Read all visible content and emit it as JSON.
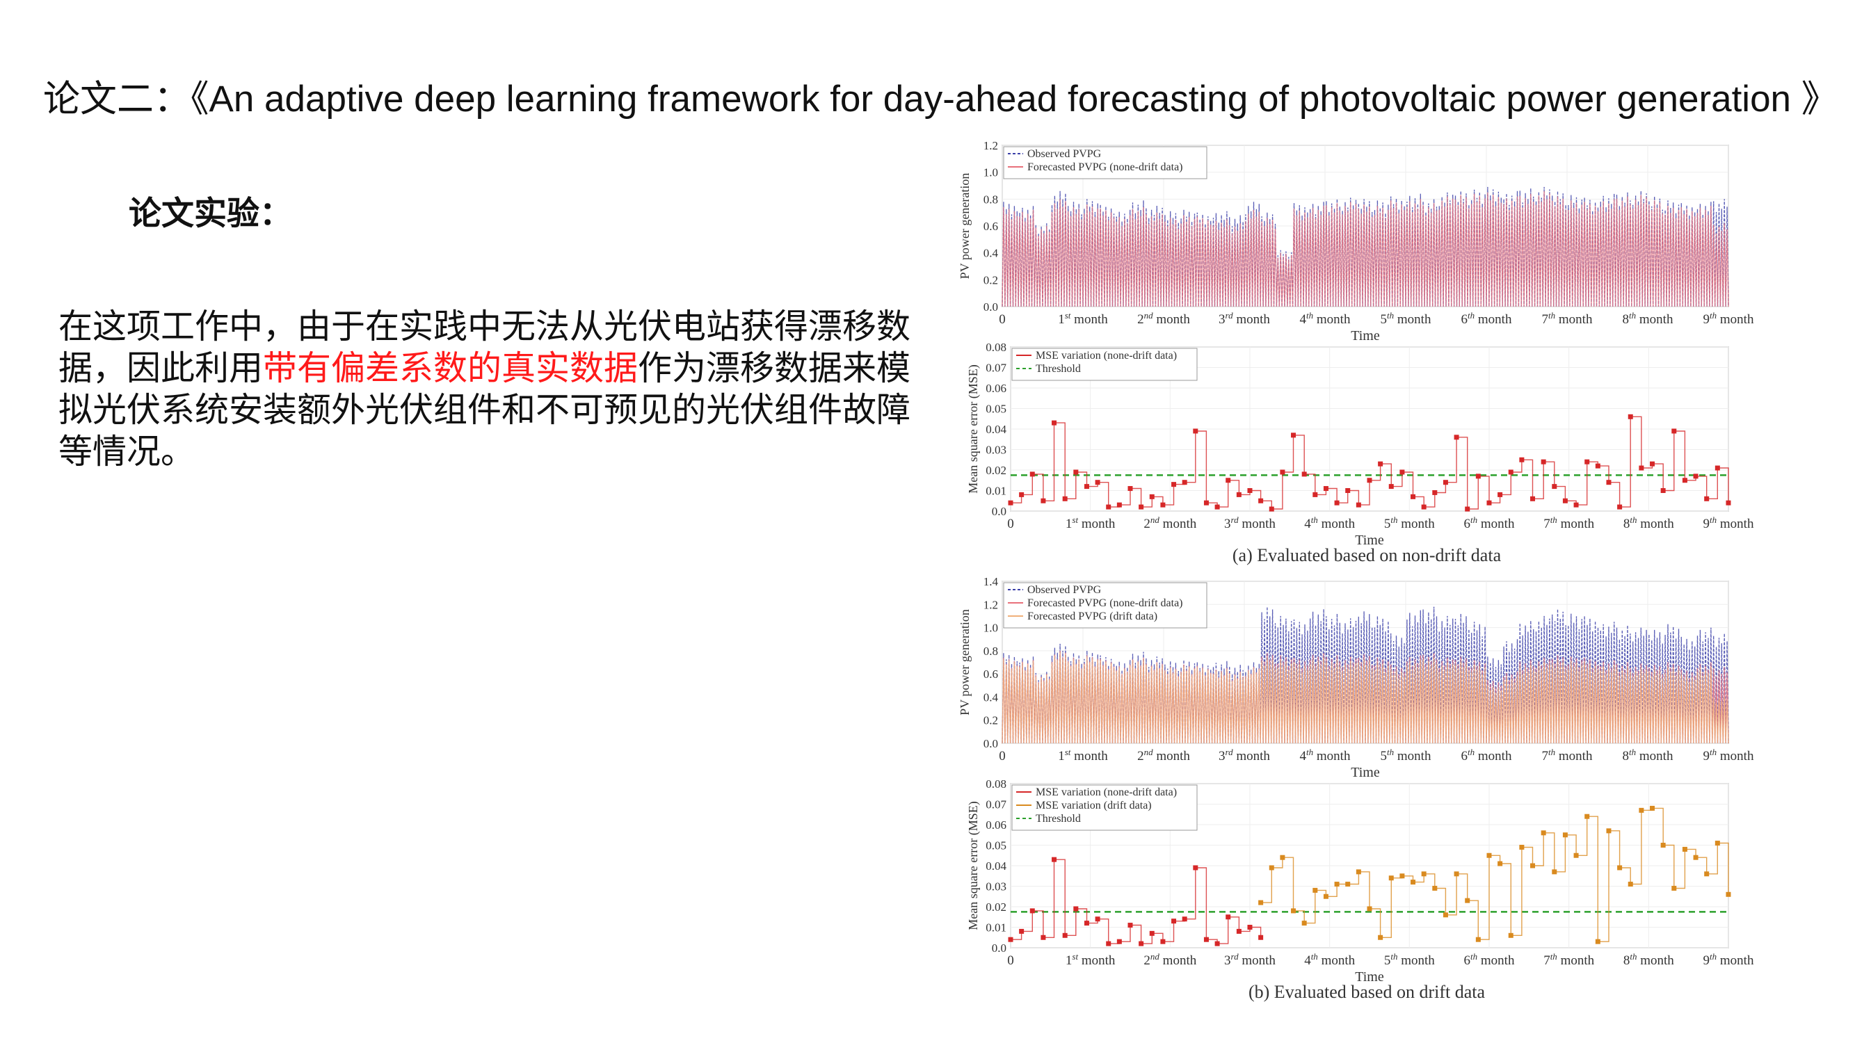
{
  "slide": {
    "title": "论文二：《An adaptive deep learning framework for day-ahead forecasting of photovoltaic power generation 》",
    "subheading": "论文实验：",
    "body_before": "在这项工作中，由于在实践中无法从光伏电站获得漂移数据，因此利用",
    "body_highlight": "带有偏差系数的真实数据",
    "body_after": "作为漂移数据来模拟光伏系统安装额外光伏组件和不可预见的光伏组件故障等情况。",
    "highlight_color": "#ff1a1a"
  },
  "chart_data": [
    {
      "id": "pv_nondrift",
      "type": "line",
      "xlabel": "Time",
      "ylabel": "PV power generation",
      "ylim": [
        0,
        1.2
      ],
      "yticks": [
        "0.0",
        "0.2",
        "0.4",
        "0.6",
        "0.8",
        "1.0",
        "1.2"
      ],
      "xlim": [
        0,
        9
      ],
      "xticks": [
        "0",
        "1st month",
        "2nd month",
        "3rd month",
        "4th month",
        "5th month",
        "6th month",
        "7th month",
        "8th month",
        "9th month"
      ],
      "legend": [
        "Observed PVPG",
        "Forecasted PVPG (none-drift data)"
      ],
      "legend_position": "top-left",
      "series": [
        {
          "name": "Observed PVPG",
          "color": "#3b3fa8",
          "dashed": true,
          "peaks": [
            0.78,
            0.75,
            0.62,
            0.86,
            0.78,
            0.8,
            0.76,
            0.72,
            0.79,
            0.75,
            0.71,
            0.72,
            0.7,
            0.71,
            0.68,
            0.78,
            0.7,
            0.42,
            0.77,
            0.78,
            0.8,
            0.81,
            0.8,
            0.79,
            0.82,
            0.84,
            0.8,
            0.85,
            0.86,
            0.87,
            0.89,
            0.86,
            0.88,
            0.89,
            0.86,
            0.83,
            0.81,
            0.84,
            0.85,
            0.86,
            0.82,
            0.79,
            0.77,
            0.78,
            0.8
          ]
        },
        {
          "name": "Forecasted PVPG (none-drift data)",
          "color": "#e8707a",
          "dashed": false,
          "peaks": [
            0.74,
            0.72,
            0.6,
            0.8,
            0.74,
            0.76,
            0.73,
            0.68,
            0.74,
            0.7,
            0.66,
            0.68,
            0.67,
            0.65,
            0.62,
            0.72,
            0.66,
            0.4,
            0.73,
            0.75,
            0.77,
            0.78,
            0.76,
            0.75,
            0.79,
            0.8,
            0.77,
            0.82,
            0.83,
            0.84,
            0.85,
            0.82,
            0.84,
            0.86,
            0.82,
            0.79,
            0.78,
            0.8,
            0.82,
            0.83,
            0.79,
            0.75,
            0.74,
            0.75,
            0.62
          ]
        }
      ]
    },
    {
      "id": "mse_nondrift",
      "type": "line",
      "xlabel": "Time",
      "ylabel": "Mean square error (MSE)",
      "ylim": [
        0,
        0.08
      ],
      "yticks": [
        "0.0",
        "0.01",
        "0.02",
        "0.03",
        "0.04",
        "0.05",
        "0.06",
        "0.07",
        "0.08"
      ],
      "xlim": [
        0,
        9
      ],
      "xticks": [
        "0",
        "1st month",
        "2nd month",
        "3rd month",
        "4th month",
        "5th month",
        "6th month",
        "7th month",
        "8th month",
        "9th month"
      ],
      "legend": [
        "MSE variation (none-drift data)",
        "Threshold"
      ],
      "legend_position": "top-left",
      "threshold": 0.0175,
      "threshold_color": "#2ca02c",
      "step_month": 0.13636,
      "series": [
        {
          "name": "MSE variation (none-drift data)",
          "color": "#d62728",
          "start_index": 0,
          "values": [
            0.004,
            0.008,
            0.018,
            0.005,
            0.043,
            0.006,
            0.019,
            0.012,
            0.014,
            0.002,
            0.003,
            0.011,
            0.002,
            0.007,
            0.003,
            0.013,
            0.014,
            0.039,
            0.004,
            0.002,
            0.015,
            0.008,
            0.01,
            0.005,
            0.001,
            0.019,
            0.037,
            0.018,
            0.008,
            0.011,
            0.004,
            0.01,
            0.003,
            0.015,
            0.023,
            0.012,
            0.019,
            0.007,
            0.002,
            0.009,
            0.014,
            0.036,
            0.001,
            0.017,
            0.004,
            0.008,
            0.019,
            0.025,
            0.006,
            0.024,
            0.012,
            0.005,
            0.003,
            0.024,
            0.022,
            0.014,
            0.002,
            0.046,
            0.021,
            0.023,
            0.01,
            0.039,
            0.015,
            0.017,
            0.006,
            0.021,
            0.004
          ]
        }
      ],
      "caption": "(a) Evaluated based on non-drift data"
    },
    {
      "id": "pv_drift",
      "type": "line",
      "xlabel": "Time",
      "ylabel": "PV power generation",
      "ylim": [
        0,
        1.4
      ],
      "yticks": [
        "0.0",
        "0.2",
        "0.4",
        "0.6",
        "0.8",
        "1.0",
        "1.2",
        "1.4"
      ],
      "xlim": [
        0,
        9
      ],
      "xticks": [
        "0",
        "1st month",
        "2nd month",
        "3rd month",
        "4th month",
        "5th month",
        "6th month",
        "7th month",
        "8th month",
        "9th month"
      ],
      "legend": [
        "Observed PVPG",
        "Forecasted PVPG (none-drift data)",
        "Forecasted PVPG (drift data)"
      ],
      "legend_position": "top-left",
      "series": [
        {
          "name": "Observed PVPG",
          "color": "#3b3fa8",
          "dashed": true,
          "peaks": [
            0.78,
            0.75,
            0.62,
            0.86,
            0.78,
            0.8,
            0.76,
            0.72,
            0.79,
            0.75,
            0.71,
            0.72,
            0.7,
            0.71,
            0.68,
            0.7,
            1.18,
            1.1,
            1.07,
            1.16,
            1.12,
            1.08,
            1.14,
            1.1,
            0.95,
            1.15,
            1.18,
            1.1,
            1.12,
            1.05,
            0.75,
            0.9,
            1.06,
            1.1,
            1.16,
            1.12,
            1.1,
            1.05,
            1.02,
            1.0,
            0.98,
            1.03,
            0.92,
            1.0,
            0.95
          ]
        },
        {
          "name": "Forecasted PVPG (none-drift data)",
          "color": "#e8707a",
          "dashed": false,
          "peaks": [
            0.74,
            0.72,
            0.6,
            0.8,
            0.74,
            0.76,
            0.73,
            0.68,
            0.74,
            0.7,
            0.66,
            0.68,
            0.67,
            0.65,
            0.62,
            0.66,
            0.78,
            0.76,
            0.74,
            0.78,
            0.76,
            0.75,
            0.77,
            0.74,
            0.68,
            0.76,
            0.78,
            0.74,
            0.75,
            0.72,
            0.55,
            0.62,
            0.72,
            0.74,
            0.76,
            0.75,
            0.74,
            0.72,
            0.7,
            0.69,
            0.68,
            0.7,
            0.64,
            0.7,
            0.66
          ]
        },
        {
          "name": "Forecasted PVPG (drift data)",
          "color": "#f0b07a",
          "dashed": false,
          "peaks": [
            0.73,
            0.71,
            0.59,
            0.79,
            0.73,
            0.75,
            0.72,
            0.67,
            0.73,
            0.69,
            0.65,
            0.67,
            0.66,
            0.64,
            0.61,
            0.65,
            0.74,
            0.72,
            0.7,
            0.74,
            0.72,
            0.71,
            0.73,
            0.7,
            0.64,
            0.72,
            0.74,
            0.7,
            0.71,
            0.68,
            0.5,
            0.58,
            0.68,
            0.7,
            0.72,
            0.71,
            0.7,
            0.68,
            0.66,
            0.65,
            0.64,
            0.66,
            0.6,
            0.66,
            0.4
          ]
        }
      ]
    },
    {
      "id": "mse_drift",
      "type": "line",
      "xlabel": "Time",
      "ylabel": "Mean square error (MSE)",
      "ylim": [
        0,
        0.08
      ],
      "yticks": [
        "0.0",
        "0.01",
        "0.02",
        "0.03",
        "0.04",
        "0.05",
        "0.06",
        "0.07",
        "0.08"
      ],
      "xlim": [
        0,
        9
      ],
      "xticks": [
        "0",
        "1st month",
        "2nd month",
        "3rd month",
        "4th month",
        "5th month",
        "6th month",
        "7th month",
        "8th month",
        "9th month"
      ],
      "legend": [
        "MSE variation (none-drift data)",
        "MSE variation (drift data)",
        "Threshold"
      ],
      "legend_position": "top-left",
      "threshold": 0.0175,
      "threshold_color": "#2ca02c",
      "step_month": 0.13636,
      "series": [
        {
          "name": "MSE variation (none-drift data)",
          "color": "#d62728",
          "start_index": 0,
          "values": [
            0.004,
            0.008,
            0.018,
            0.005,
            0.043,
            0.006,
            0.019,
            0.012,
            0.014,
            0.002,
            0.003,
            0.011,
            0.002,
            0.007,
            0.003,
            0.013,
            0.014,
            0.039,
            0.004,
            0.002,
            0.015,
            0.008,
            0.01,
            0.005
          ]
        },
        {
          "name": "MSE variation (drift data)",
          "color": "#d98a1f",
          "start_index": 23,
          "values": [
            0.022,
            0.039,
            0.044,
            0.018,
            0.012,
            0.028,
            0.025,
            0.031,
            0.031,
            0.037,
            0.019,
            0.005,
            0.034,
            0.035,
            0.032,
            0.036,
            0.029,
            0.016,
            0.036,
            0.023,
            0.004,
            0.045,
            0.041,
            0.006,
            0.049,
            0.04,
            0.056,
            0.037,
            0.055,
            0.045,
            0.064,
            0.003,
            0.057,
            0.039,
            0.031,
            0.067,
            0.068,
            0.05,
            0.029,
            0.048,
            0.044,
            0.036,
            0.051,
            0.026
          ]
        }
      ],
      "caption": "(b) Evaluated based on drift data"
    }
  ]
}
